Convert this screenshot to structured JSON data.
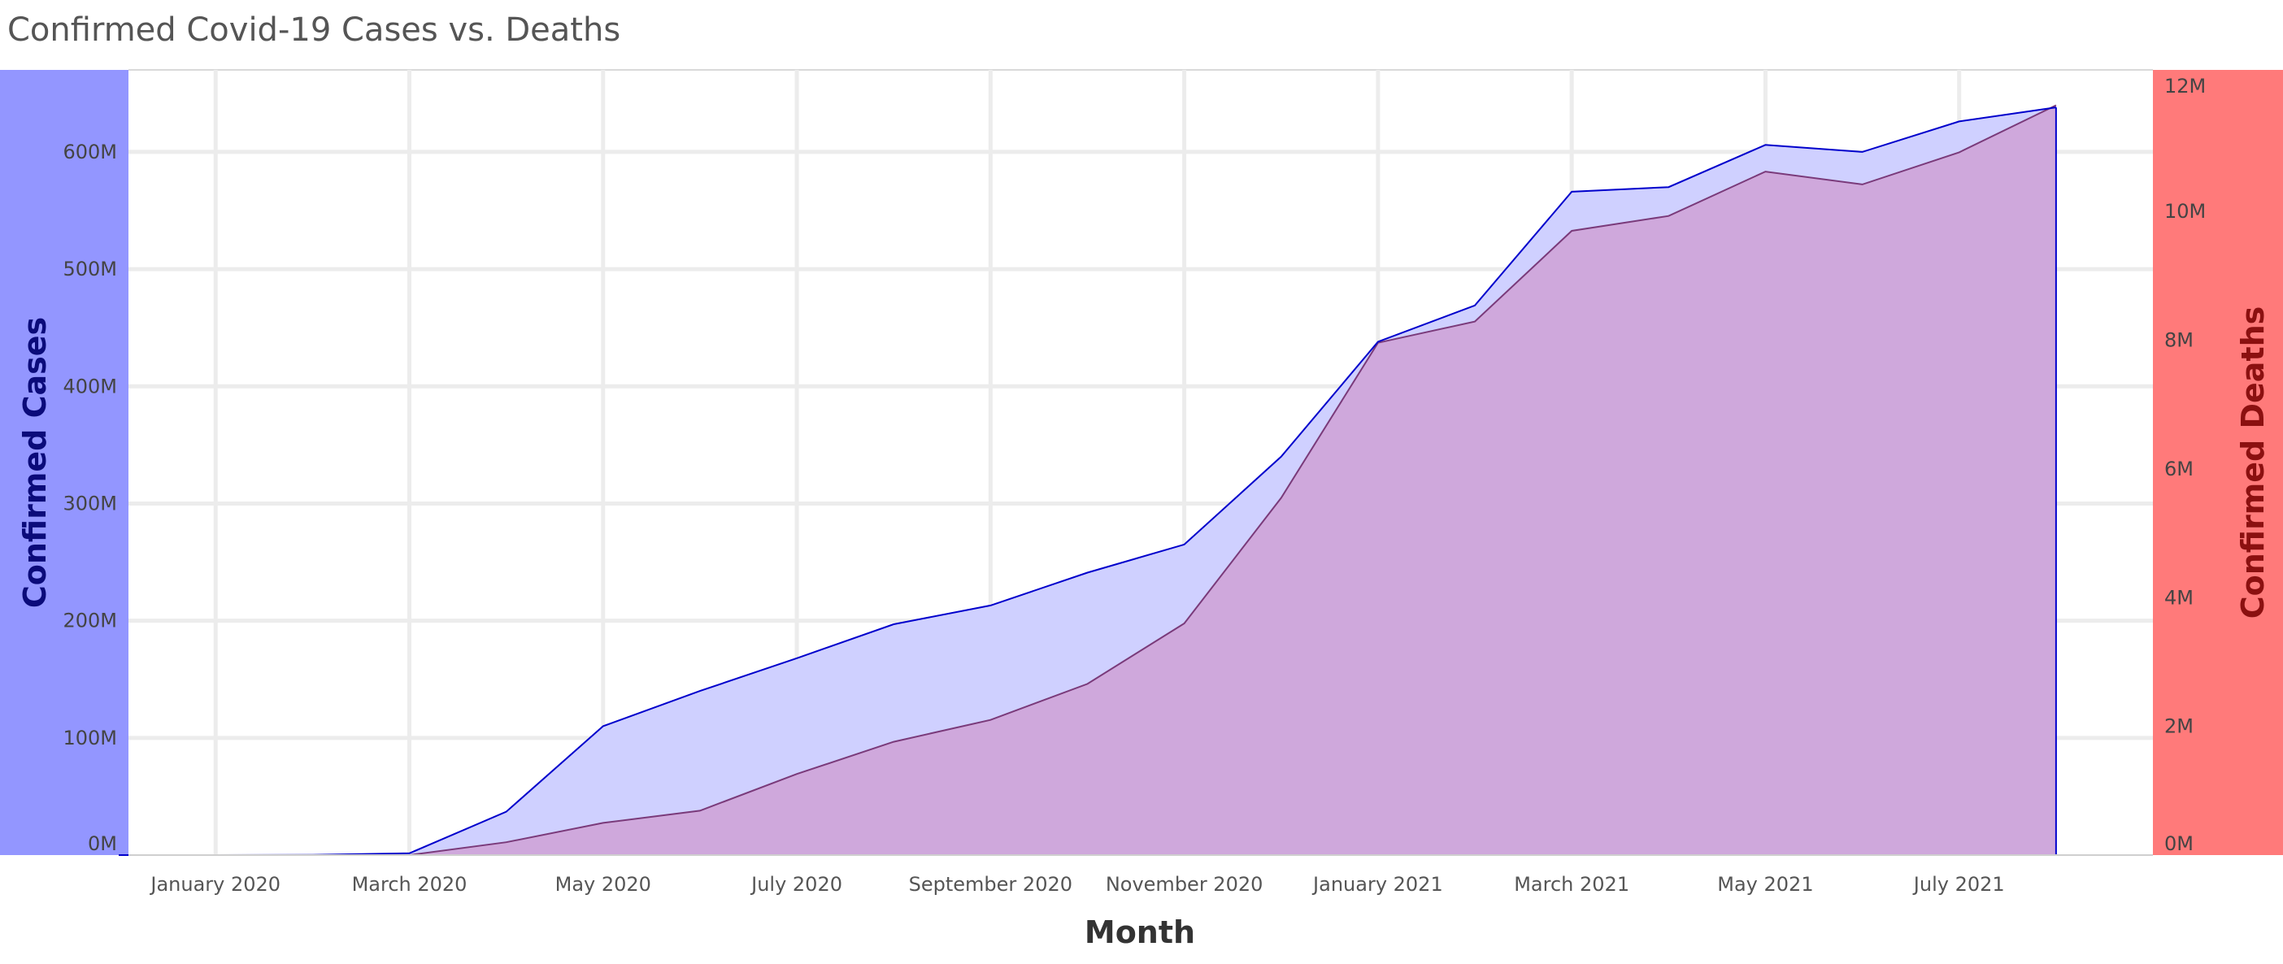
{
  "colors": {
    "left_band": "#9396ff",
    "right_band": "#ff7a7a",
    "cases_line": "#0000cc",
    "cases_fill": "#cfd0ff",
    "deaths_line": "#7a3a7a",
    "deaths_fill": "#cfa8dc",
    "left_title": "#0b0b7a",
    "right_title": "#8b1010",
    "grid": "#ececec"
  },
  "chart_data": {
    "type": "area",
    "title": "Confirmed Covid-19 Cases vs. Deaths",
    "xlabel": "Month",
    "ylabel_left": "Confirmed Cases",
    "ylabel_right": "Confirmed Deaths",
    "x_ticks": [
      "January 2020",
      "March 2020",
      "May 2020",
      "July 2020",
      "September 2020",
      "November 2020",
      "January 2021",
      "March 2021",
      "May 2021",
      "July 2021"
    ],
    "x_tick_indices": [
      0,
      2,
      4,
      6,
      8,
      10,
      12,
      14,
      16,
      18
    ],
    "y_left_ticks": [
      "0M",
      "100M",
      "200M",
      "300M",
      "400M",
      "500M",
      "600M"
    ],
    "y_left_tick_values": [
      0,
      100,
      200,
      300,
      400,
      500,
      600
    ],
    "y_left_range": [
      0,
      670
    ],
    "y_right_ticks": [
      "0M",
      "2M",
      "4M",
      "6M",
      "8M",
      "10M",
      "12M"
    ],
    "y_right_tick_values": [
      0,
      2,
      4,
      6,
      8,
      10,
      12
    ],
    "y_right_range": [
      0,
      12.2
    ],
    "month_index_range": [
      -0.9,
      20.0
    ],
    "series": [
      {
        "name": "Confirmed Cases",
        "axis": "left",
        "unit": "M",
        "x": [
          -1,
          0,
          1,
          2,
          3,
          4,
          5,
          6,
          7,
          8,
          9,
          10,
          11,
          12,
          13,
          14,
          15,
          16,
          17,
          18,
          19
        ],
        "values": [
          0,
          0,
          0.2,
          1.5,
          37,
          110,
          140,
          168,
          197,
          213,
          241,
          265,
          340,
          438,
          469,
          566,
          570,
          606,
          600,
          626,
          638
        ]
      },
      {
        "name": "Confirmed Deaths",
        "axis": "right",
        "unit": "M",
        "x": [
          -1,
          0,
          1,
          2,
          3,
          4,
          5,
          6,
          7,
          8,
          9,
          10,
          11,
          12,
          13,
          14,
          15,
          16,
          17,
          18,
          19
        ],
        "values": [
          0,
          0,
          0,
          0,
          0.2,
          0.5,
          0.69,
          1.26,
          1.76,
          2.1,
          2.66,
          3.6,
          5.55,
          7.96,
          8.29,
          9.7,
          9.93,
          10.62,
          10.42,
          10.92,
          11.65
        ]
      }
    ]
  }
}
